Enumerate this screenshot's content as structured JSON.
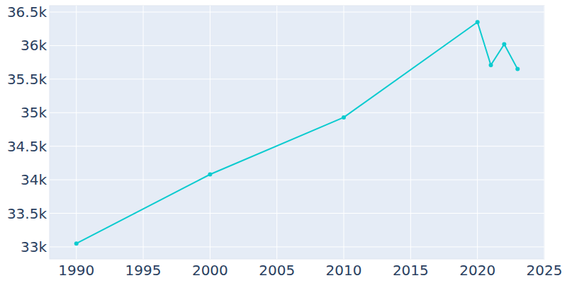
{
  "chart_data": {
    "type": "line",
    "x": [
      1990,
      2000,
      2010,
      2020,
      2021,
      2022,
      2023
    ],
    "values": [
      33050,
      34080,
      34930,
      36350,
      35710,
      36020,
      35650
    ],
    "color": "#0bcbcf",
    "marker": "circle",
    "xlim": [
      1988,
      2025
    ],
    "xticks": [
      1990,
      1995,
      2000,
      2005,
      2010,
      2015,
      2020,
      2025
    ],
    "ylim": [
      32820,
      36595
    ],
    "yticks": [
      {
        "value": 33000,
        "label": "33k"
      },
      {
        "value": 33500,
        "label": "33.5k"
      },
      {
        "value": 34000,
        "label": "34k"
      },
      {
        "value": 34500,
        "label": "34.5k"
      },
      {
        "value": 35000,
        "label": "35k"
      },
      {
        "value": 35500,
        "label": "35.5k"
      },
      {
        "value": 36000,
        "label": "36k"
      },
      {
        "value": 36500,
        "label": "36.5k"
      }
    ],
    "grid": true
  }
}
